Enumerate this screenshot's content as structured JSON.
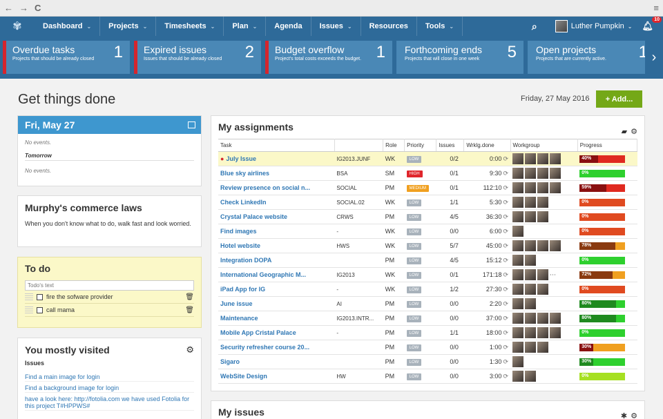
{
  "browser": {
    "back": "←",
    "forward": "→",
    "reload": "C",
    "menu": "≡"
  },
  "nav": {
    "items": [
      {
        "label": "Dashboard",
        "chevron": true
      },
      {
        "label": "Projects",
        "chevron": true
      },
      {
        "label": "Timesheets",
        "chevron": true
      },
      {
        "label": "Plan",
        "chevron": true
      },
      {
        "label": "Agenda",
        "chevron": false
      },
      {
        "label": "Issues",
        "chevron": true
      },
      {
        "label": "Resources",
        "chevron": false
      },
      {
        "label": "Tools",
        "chevron": true
      }
    ],
    "user_name": "Luther Pumpkin",
    "notifications": "10"
  },
  "kpis": [
    {
      "title": "Overdue tasks",
      "sub": "Projects that should be already closed",
      "count": "1",
      "alert": true
    },
    {
      "title": "Expired issues",
      "sub": "Issues that should be already closed",
      "count": "2",
      "alert": true
    },
    {
      "title": "Budget overflow",
      "sub": "Project's total costs exceeds the budget.",
      "count": "1",
      "alert": true
    },
    {
      "title": "Forthcoming ends",
      "sub": "Projects that will close in one week",
      "count": "5",
      "alert": false
    },
    {
      "title": "Open projects",
      "sub": "Projects that are currently active.",
      "count": "1",
      "alert": false
    }
  ],
  "header": {
    "title": "Get things done",
    "date": "Friday, 27 May 2016",
    "add_label": "+ Add..."
  },
  "calendar": {
    "title": "Fri, May 27",
    "today_text": "No events.",
    "tomorrow_label": "Tomorrow",
    "tomorrow_text": "No events."
  },
  "murphy": {
    "title": "Murphy's commerce laws",
    "text": "When you don't know what to do, walk fast and look worried."
  },
  "todo": {
    "title": "To do",
    "placeholder": "Todo's text",
    "items": [
      "fire the sofware provider",
      "call mama"
    ]
  },
  "visited": {
    "title": "You mostly visited",
    "section": "Issues",
    "links": [
      "Find a main image for login",
      "Find a background image for login",
      "have a look here: http://fotolia.com we have used Fotolia for this project T#HPPWS#"
    ]
  },
  "assignments": {
    "title": "My assignments",
    "columns": [
      "Task",
      "",
      "Role",
      "Priority",
      "Issues",
      "Wrklg.done",
      "Workgroup",
      "Progress"
    ],
    "rows": [
      {
        "task": "July Issue",
        "code": "IG2013.JUNF",
        "role": "WK",
        "priority": "LOW",
        "issues": "0/2",
        "done": "0:00",
        "avatars": 4,
        "more": false,
        "progress": 40,
        "pct": "40%",
        "highlight": true,
        "error": true
      },
      {
        "task": "Blue sky airlines",
        "code": "BSA",
        "role": "SM",
        "priority": "HIGH",
        "issues": "0/1",
        "done": "9:30",
        "avatars": 4,
        "more": false,
        "progress": 0,
        "pct": "0%",
        "highlight": false,
        "error": false
      },
      {
        "task": "Review presence on social n...",
        "code": "SOCIAL",
        "role": "PM",
        "priority": "MEDIUM",
        "issues": "0/1",
        "done": "112:10",
        "avatars": 4,
        "more": false,
        "progress": 59,
        "pct": "59%",
        "highlight": false,
        "error": false
      },
      {
        "task": "Check LinkedIn",
        "code": "SOCIAL.02",
        "role": "WK",
        "priority": "LOW",
        "issues": "1/1",
        "done": "5:30",
        "avatars": 3,
        "more": false,
        "progress": 0,
        "pct": "0%",
        "highlight": false,
        "error": false
      },
      {
        "task": "Crystal Palace website",
        "code": "CRWS",
        "role": "PM",
        "priority": "LOW",
        "issues": "4/5",
        "done": "36:30",
        "avatars": 3,
        "more": false,
        "progress": 0,
        "pct": "0%",
        "highlight": false,
        "error": false
      },
      {
        "task": "Find images",
        "code": "-",
        "role": "WK",
        "priority": "LOW",
        "issues": "0/0",
        "done": "6:00",
        "avatars": 1,
        "more": false,
        "progress": 0,
        "pct": "0%",
        "highlight": false,
        "error": false
      },
      {
        "task": "Hotel website",
        "code": "HWS",
        "role": "WK",
        "priority": "LOW",
        "issues": "5/7",
        "done": "45:00",
        "avatars": 4,
        "more": false,
        "progress": 78,
        "pct": "78%",
        "highlight": false,
        "error": false
      },
      {
        "task": "Integration DOPA",
        "code": "",
        "role": "PM",
        "priority": "LOW",
        "issues": "4/5",
        "done": "15:12",
        "avatars": 2,
        "more": false,
        "progress": 0,
        "pct": "0%",
        "highlight": false,
        "error": false
      },
      {
        "task": "International Geographic M...",
        "code": "IG2013",
        "role": "WK",
        "priority": "LOW",
        "issues": "0/1",
        "done": "171:18",
        "avatars": 3,
        "more": true,
        "progress": 72,
        "pct": "72%",
        "highlight": false,
        "error": false
      },
      {
        "task": "iPad App for IG",
        "code": "-",
        "role": "WK",
        "priority": "LOW",
        "issues": "1/2",
        "done": "27:30",
        "avatars": 3,
        "more": false,
        "progress": 0,
        "pct": "0%",
        "highlight": false,
        "error": false
      },
      {
        "task": "June issue",
        "code": "AI",
        "role": "PM",
        "priority": "LOW",
        "issues": "0/0",
        "done": "2:20",
        "avatars": 2,
        "more": false,
        "progress": 80,
        "pct": "80%",
        "highlight": false,
        "error": false
      },
      {
        "task": "Maintenance",
        "code": "IG2013.INTR...",
        "role": "PM",
        "priority": "LOW",
        "issues": "0/0",
        "done": "37:00",
        "avatars": 4,
        "more": false,
        "progress": 80,
        "pct": "80%",
        "highlight": false,
        "error": false
      },
      {
        "task": "Mobile App Cristal Palace",
        "code": "-",
        "role": "PM",
        "priority": "LOW",
        "issues": "1/1",
        "done": "18:00",
        "avatars": 4,
        "more": false,
        "progress": 0,
        "pct": "0%",
        "highlight": false,
        "error": false
      },
      {
        "task": "Security refresher course 20...",
        "code": "",
        "role": "PM",
        "priority": "LOW",
        "issues": "0/0",
        "done": "1:00",
        "avatars": 3,
        "more": false,
        "progress": 30,
        "pct": "30%",
        "highlight": false,
        "error": false
      },
      {
        "task": "Sigaro",
        "code": "",
        "role": "PM",
        "priority": "LOW",
        "issues": "0/0",
        "done": "1:30",
        "avatars": 1,
        "more": false,
        "progress": 30,
        "pct": "30%",
        "highlight": false,
        "error": false
      },
      {
        "task": "WebSite Design",
        "code": "HW",
        "role": "PM",
        "priority": "LOW",
        "issues": "0/0",
        "done": "3:00",
        "avatars": 2,
        "more": false,
        "progress": 0,
        "pct": "0%",
        "highlight": false,
        "error": false
      }
    ]
  },
  "my_issues": {
    "title": "My issues"
  },
  "colors": {
    "navbar": "#2e6a99",
    "kpi": "#4a88b6",
    "alert": "#d5252d",
    "add": "#74a817",
    "link": "#2f77b4",
    "todo_bg": "#fbf8c8"
  }
}
